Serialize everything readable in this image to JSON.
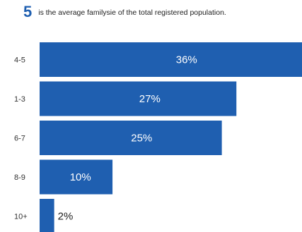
{
  "header": {
    "highlight": "5",
    "text": "is the average familysie of the total registered population."
  },
  "colors": {
    "bar": "#1f5fb0",
    "accent": "#1f5fb0"
  },
  "chart_data": {
    "type": "bar",
    "orientation": "horizontal",
    "categories": [
      "4-5",
      "1-3",
      "6-7",
      "8-9",
      "10+"
    ],
    "values": [
      36,
      27,
      25,
      10,
      2
    ],
    "labels": [
      "36%",
      "27%",
      "25%",
      "10%",
      "2%"
    ],
    "xlim": [
      0,
      36
    ],
    "grid": false,
    "legend": "none",
    "title": "",
    "xlabel": "",
    "ylabel": ""
  }
}
